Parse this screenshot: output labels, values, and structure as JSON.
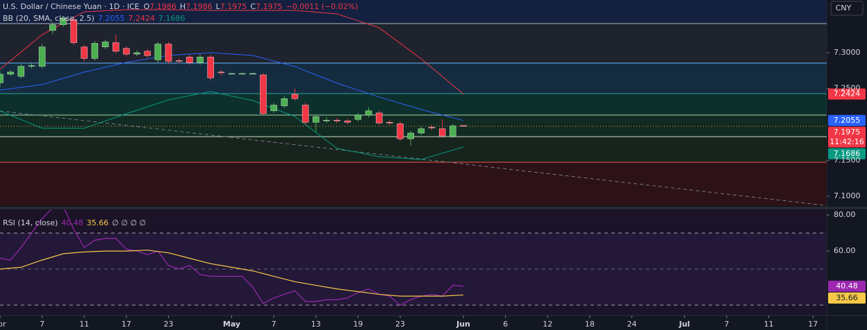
{
  "chart_data": [
    {
      "type": "candlestick",
      "title": "U.S. Dollar / Chinese Yuan · 1D · ICE",
      "ohlc_labels": [
        "O",
        "H",
        "L",
        "C"
      ],
      "ohlc": [
        7.1986,
        7.1986,
        7.1975,
        7.1975
      ],
      "change": "−0.0011 (−0.02%)",
      "currency": "CNY",
      "indicator": "BB (20, SMA, close, 2.5)",
      "up_color": "#4caf50",
      "down_color": "#f23645",
      "open": [
        7.258,
        7.27,
        7.267,
        7.281,
        7.281,
        7.331,
        7.339,
        7.346,
        7.308,
        7.292,
        7.308,
        7.314,
        7.306,
        7.298,
        7.302,
        7.29,
        7.312,
        7.289,
        7.294,
        7.286,
        7.294,
        7.273,
        7.271,
        7.271,
        7.271,
        7.269,
        7.219,
        7.226,
        7.242,
        7.227,
        7.203,
        7.205,
        7.206,
        7.205,
        7.207,
        7.213,
        7.216,
        7.203,
        7.201,
        7.18,
        7.188,
        7.196,
        7.194,
        7.184,
        7.1986
      ],
      "high": [
        7.274,
        7.276,
        7.284,
        7.285,
        7.312,
        7.342,
        7.351,
        7.35,
        7.311,
        7.316,
        7.318,
        7.325,
        7.309,
        7.303,
        7.305,
        7.315,
        7.315,
        7.292,
        7.297,
        7.298,
        7.297,
        7.276,
        7.272,
        7.272,
        7.272,
        7.272,
        7.23,
        7.24,
        7.25,
        7.23,
        7.214,
        7.21,
        7.209,
        7.208,
        7.216,
        7.224,
        7.219,
        7.206,
        7.204,
        7.191,
        7.197,
        7.199,
        7.207,
        7.201,
        7.1986
      ],
      "low": [
        7.252,
        7.268,
        7.264,
        7.278,
        7.278,
        7.326,
        7.336,
        7.311,
        7.288,
        7.289,
        7.305,
        7.299,
        7.295,
        7.295,
        7.293,
        7.286,
        7.284,
        7.285,
        7.283,
        7.283,
        7.261,
        7.268,
        7.27,
        7.27,
        7.27,
        7.212,
        7.216,
        7.223,
        7.233,
        7.199,
        7.19,
        7.202,
        7.202,
        7.2,
        7.204,
        7.21,
        7.199,
        7.199,
        7.177,
        7.17,
        7.185,
        7.192,
        7.181,
        7.181,
        7.1975
      ],
      "close": [
        7.27,
        7.273,
        7.281,
        7.282,
        7.308,
        7.339,
        7.348,
        7.314,
        7.292,
        7.313,
        7.315,
        7.302,
        7.298,
        7.3,
        7.296,
        7.312,
        7.288,
        7.288,
        7.286,
        7.294,
        7.265,
        7.272,
        7.271,
        7.271,
        7.271,
        7.215,
        7.227,
        7.236,
        7.236,
        7.203,
        7.211,
        7.206,
        7.205,
        7.203,
        7.213,
        7.219,
        7.202,
        7.202,
        7.18,
        7.188,
        7.194,
        7.195,
        7.184,
        7.198,
        7.1975
      ],
      "bb": {
        "x": [
          0,
          4,
          8,
          12,
          16,
          20,
          24,
          28,
          32,
          36,
          40,
          44
        ],
        "series": [
          {
            "color": "#2962ff",
            "values": [
              7.2478,
              7.2556,
              7.2729,
              7.2865,
              7.2961,
              7.3,
              7.2961,
              7.2807,
              7.2575,
              7.2382,
              7.2208,
              7.2055
            ]
          },
          {
            "color": "#f23645",
            "values": [
              7.2768,
              7.3251,
              7.357,
              7.3599,
              7.3599,
              7.3589,
              7.3589,
              7.3589,
              7.3541,
              7.3348,
              7.2913,
              7.2424
            ]
          },
          {
            "color": "#089981",
            "values": [
              7.2188,
              7.1947,
              7.1947,
              7.215,
              7.2343,
              7.2459,
              7.2333,
              7.2111,
              7.1667,
              7.1551,
              7.1512,
              7.1686
            ]
          }
        ]
      },
      "levels": [
        7.3406,
        7.2855,
        7.243,
        7.213,
        7.183,
        7.1473
      ],
      "level_colors": [
        "#b2b5be",
        "#64b5f6",
        "#26a69a",
        "#a5d6a7",
        "#c8e6c9",
        "#ef5350"
      ],
      "zone_colors": [
        "#142040",
        "#1f232d",
        "#152c40",
        "#0e302d",
        "#112a22",
        "#17241d",
        "#2c1216"
      ],
      "trendline": {
        "x": [
          0,
          78.5
        ],
        "values": [
          7.2188,
          7.087
        ]
      },
      "badges": [
        {
          "value": 7.2424,
          "color": "#f23645"
        },
        {
          "value": 7.2055,
          "color": "#2962ff"
        },
        {
          "value": 7.1975,
          "color": "#f23645",
          "countdown": "11:42:16"
        },
        {
          "value": 7.1686,
          "color": "#089981"
        }
      ],
      "xlim": [
        0,
        78.5
      ],
      "ylim": [
        7.0865,
        7.3734
      ],
      "yticks": [
        {
          "value": 7.3,
          "label": "7.3000"
        },
        {
          "value": 7.25,
          "label": "7.2500"
        },
        {
          "value": 7.15,
          "label": "7.1500"
        },
        {
          "value": 7.1,
          "label": "7.1000"
        }
      ],
      "xticks": [
        {
          "value": 0,
          "label": "pr"
        },
        {
          "value": 4,
          "label": "7"
        },
        {
          "value": 8,
          "label": "11"
        },
        {
          "value": 12,
          "label": "17"
        },
        {
          "value": 16,
          "label": "23"
        },
        {
          "value": 22,
          "label": "May"
        },
        {
          "value": 26,
          "label": "7"
        },
        {
          "value": 30,
          "label": "13"
        },
        {
          "value": 34,
          "label": "19"
        },
        {
          "value": 38,
          "label": "23"
        },
        {
          "value": 44,
          "label": "Jun"
        },
        {
          "value": 48,
          "label": "6"
        },
        {
          "value": 52,
          "label": "12"
        },
        {
          "value": 56,
          "label": "18"
        },
        {
          "value": 60,
          "label": "24"
        },
        {
          "value": 65,
          "label": "Jul"
        },
        {
          "value": 69,
          "label": "7"
        },
        {
          "value": 73,
          "label": "11"
        },
        {
          "value": 77.2,
          "label": "17"
        }
      ]
    },
    {
      "type": "line",
      "title": "RSI (14, close)",
      "extra": "∅ ∅ ∅ ∅",
      "series": [
        {
          "color": "#9c27b0",
          "x": [
            0,
            1,
            2,
            3,
            4,
            5,
            6,
            7,
            8,
            9,
            10,
            11,
            12,
            13,
            14,
            15,
            16,
            17,
            18,
            19,
            20,
            21,
            22,
            23,
            24,
            25,
            26,
            27,
            28,
            29,
            30,
            31,
            32,
            33,
            34,
            35,
            36,
            37,
            38,
            39,
            40,
            41,
            42,
            43,
            44
          ],
          "values": [
            56,
            55,
            62,
            70,
            78,
            84,
            85,
            72,
            62,
            66,
            67,
            67,
            61,
            60,
            58,
            60,
            52,
            50,
            52,
            47,
            46,
            46,
            46,
            46,
            40,
            31,
            34,
            36,
            38,
            32,
            32,
            33,
            33,
            34,
            37,
            39,
            36,
            35,
            30,
            33,
            35,
            36,
            35,
            41,
            40.48
          ]
        },
        {
          "color": "#f7c948",
          "x": [
            0,
            2,
            4,
            6,
            8,
            10,
            12,
            14,
            16,
            18,
            20,
            22,
            24,
            26,
            28,
            30,
            32,
            34,
            36,
            38,
            40,
            42,
            44
          ],
          "values": [
            50,
            51,
            55,
            58.5,
            59.5,
            60,
            60,
            60.5,
            59,
            56,
            53,
            51,
            49,
            46,
            43,
            41,
            39,
            37.5,
            36,
            35,
            35,
            35,
            35.66
          ]
        }
      ],
      "bands": [
        70,
        50,
        30
      ],
      "xlim": [
        0,
        78.5
      ],
      "ylim": [
        24.3,
        83.1
      ],
      "yticks": [
        {
          "value": 80,
          "label": "80.00"
        },
        {
          "value": 60,
          "label": "60.00"
        }
      ]
    }
  ]
}
